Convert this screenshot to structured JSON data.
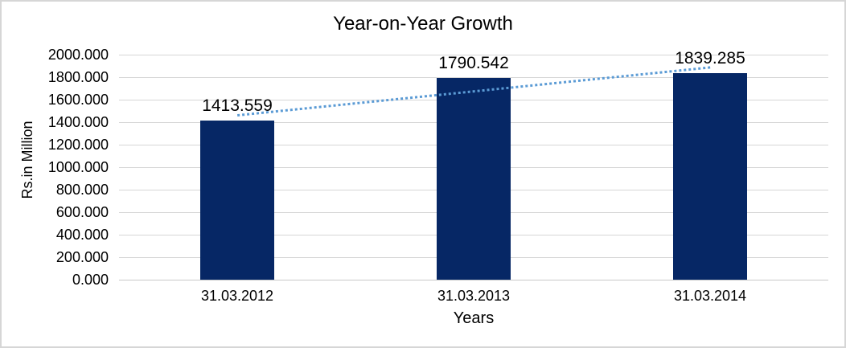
{
  "window": {
    "background": "#ffffff",
    "border_color": "#d6d6d6"
  },
  "chart_data": {
    "type": "bar",
    "title": "Year-on-Year Growth",
    "categories": [
      "31.03.2012",
      "31.03.2013",
      "31.03.2014"
    ],
    "values": [
      1413.559,
      1790.542,
      1839.285
    ],
    "value_labels": [
      "1413.559",
      "1790.542",
      "1839.285"
    ],
    "xlabel": "Years",
    "ylabel": "Rs.in Million",
    "ylim": [
      0,
      2000
    ],
    "ytick_step": 200,
    "ytick_labels": [
      "0.000",
      "200.000",
      "400.000",
      "600.000",
      "800.000",
      "1000.000",
      "1200.000",
      "1400.000",
      "1600.000",
      "1800.000",
      "2000.000"
    ],
    "grid": true,
    "legend": "none",
    "bar_color": "#062765",
    "gridline_color": "#d6d6d6",
    "axis_line_color": "#c9c9c9",
    "text_color": "#000000",
    "trendline": {
      "type": "linear",
      "style": "dotted",
      "color": "#5b9bd5",
      "start_value": 1468.3,
      "end_value": 1894.0
    }
  }
}
